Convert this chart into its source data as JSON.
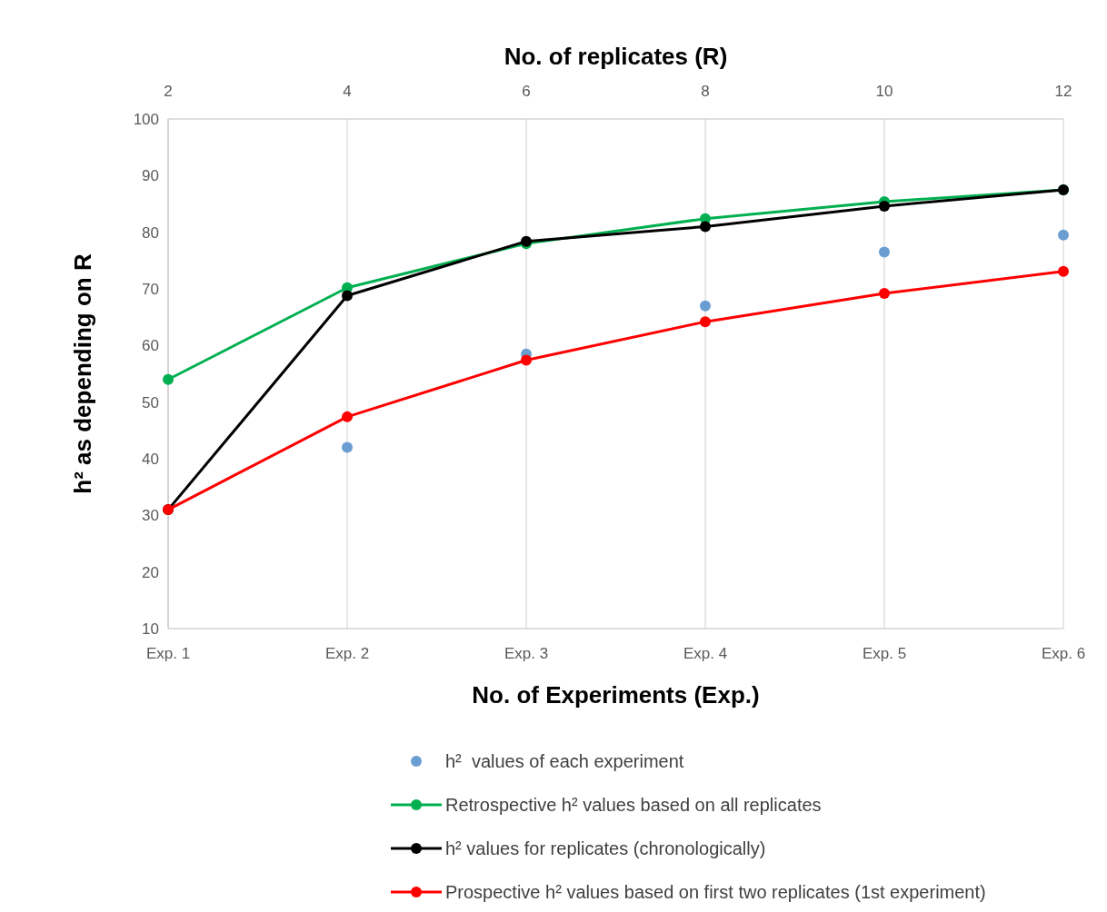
{
  "chart_data": {
    "type": "line",
    "xlabel": "No. of Experiments (Exp.)",
    "ylabel": "h² as depending on R",
    "x2label": "No. of replicates (R)",
    "categories": [
      "Exp. 1",
      "Exp. 2",
      "Exp. 3",
      "Exp. 4",
      "Exp. 5",
      "Exp. 6"
    ],
    "x2lim": [
      2,
      12
    ],
    "x2ticks": [
      2,
      4,
      6,
      8,
      10,
      12
    ],
    "ylim": [
      10,
      100
    ],
    "yticks": [
      10,
      20,
      30,
      40,
      50,
      60,
      70,
      80,
      90,
      100
    ],
    "grid": "x",
    "legend": "bottom",
    "marker": "circle",
    "line_style": "solid",
    "series": [
      {
        "name": "h²  values of each experiment",
        "type": "scatter",
        "color": "#6a9ed3",
        "values": [
          null,
          42,
          58.5,
          67,
          76.5,
          79.5
        ]
      },
      {
        "name": "Retrospective h² values based on all replicates",
        "color": "#00b050",
        "values": [
          54,
          70.2,
          78,
          82.4,
          85.4,
          87.5
        ]
      },
      {
        "name": "h² values for replicates (chronologically)",
        "color": "#000000",
        "values": [
          31,
          68.8,
          78.4,
          81,
          84.6,
          87.5
        ]
      },
      {
        "name": "Prospective h² values based on first two replicates (1st experiment)",
        "color": "#ff0000",
        "values": [
          31,
          47.4,
          57.4,
          64.2,
          69.2,
          73.1
        ]
      }
    ]
  }
}
